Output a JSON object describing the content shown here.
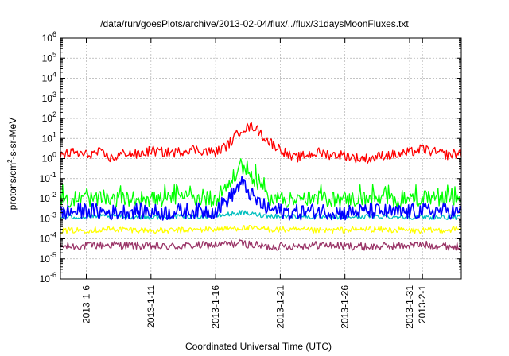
{
  "chart_data": {
    "type": "line",
    "title": "/data/run/goesPlots/archive/2013-02-04/flux/../flux/31daysMoonFluxes.txt",
    "xlabel": "Coordinated Universal Time (UTC)",
    "ylabel": "protons/cm2-s-sr-MeV",
    "ylabel_base": "protons/cm",
    "ylabel_sup": "2",
    "ylabel_rest": "-s-sr-MeV",
    "yscale": "log",
    "ylim": [
      1e-06,
      1000000
    ],
    "ytick_exponents": [
      "-6",
      "-5",
      "-4",
      "-3",
      "-2",
      "-1",
      "0",
      "1",
      "2",
      "3",
      "4",
      "5",
      "6"
    ],
    "ytick_base": "10",
    "xlim": [
      "2013-01-04",
      "2013-02-04"
    ],
    "xticks": [
      {
        "date": "2013-01-06",
        "label": "2013-1-6"
      },
      {
        "date": "2013-01-11",
        "label": "2013-1-11"
      },
      {
        "date": "2013-01-16",
        "label": "2013-1-16"
      },
      {
        "date": "2013-01-21",
        "label": "2013-1-21"
      },
      {
        "date": "2013-01-26",
        "label": "2013-1-26"
      },
      {
        "date": "2013-01-31",
        "label": "2013-1-31"
      },
      {
        "date": "2013-02-01",
        "label": "2013-2-1"
      }
    ],
    "grid": true,
    "legend": "none",
    "series_colors": [
      "#ff0000",
      "#00ff00",
      "#0000ff",
      "#00bfbf",
      "#ffff00",
      "#993366"
    ],
    "series": [
      {
        "color": "#ff0000",
        "dates": [
          "2013-01-04",
          "2013-01-05",
          "2013-01-06",
          "2013-01-07",
          "2013-01-08",
          "2013-01-09",
          "2013-01-10",
          "2013-01-11",
          "2013-01-12",
          "2013-01-13",
          "2013-01-14",
          "2013-01-15",
          "2013-01-16",
          "2013-01-17",
          "2013-01-18",
          "2013-01-19",
          "2013-01-20",
          "2013-01-21",
          "2013-01-22",
          "2013-01-23",
          "2013-01-24",
          "2013-01-25",
          "2013-01-26",
          "2013-01-27",
          "2013-01-28",
          "2013-01-29",
          "2013-01-30",
          "2013-01-31",
          "2013-02-01",
          "2013-02-02",
          "2013-02-03",
          "2013-02-04"
        ],
        "values": [
          1.5,
          2,
          1.5,
          2,
          1,
          2,
          1.5,
          2.5,
          2,
          2,
          3,
          2.5,
          2,
          5,
          30,
          40,
          8,
          3,
          1,
          1.5,
          2,
          1.5,
          1.5,
          1,
          1,
          1.5,
          1.5,
          2,
          3,
          2,
          1.5,
          2
        ]
      },
      {
        "color": "#00ff00",
        "dates": [
          "2013-01-04",
          "2013-01-06",
          "2013-01-08",
          "2013-01-10",
          "2013-01-12",
          "2013-01-14",
          "2013-01-16",
          "2013-01-17",
          "2013-01-18",
          "2013-01-19",
          "2013-01-20",
          "2013-01-22",
          "2013-01-24",
          "2013-01-26",
          "2013-01-28",
          "2013-01-30",
          "2013-02-01",
          "2013-02-03",
          "2013-02-04"
        ],
        "values": [
          0.008,
          0.01,
          0.008,
          0.01,
          0.009,
          0.01,
          0.01,
          0.05,
          0.4,
          0.1,
          0.01,
          0.008,
          0.01,
          0.009,
          0.01,
          0.008,
          0.01,
          0.01,
          0.01
        ]
      },
      {
        "color": "#0000ff",
        "dates": [
          "2013-01-04",
          "2013-01-06",
          "2013-01-08",
          "2013-01-10",
          "2013-01-12",
          "2013-01-14",
          "2013-01-16",
          "2013-01-17",
          "2013-01-18",
          "2013-01-19",
          "2013-01-20",
          "2013-01-22",
          "2013-01-24",
          "2013-01-26",
          "2013-01-28",
          "2013-01-30",
          "2013-02-01",
          "2013-02-03",
          "2013-02-04"
        ],
        "values": [
          0.002,
          0.0025,
          0.002,
          0.0025,
          0.002,
          0.0025,
          0.0025,
          0.01,
          0.06,
          0.01,
          0.003,
          0.002,
          0.0025,
          0.002,
          0.0025,
          0.002,
          0.0025,
          0.0025,
          0.002
        ]
      },
      {
        "color": "#00bfbf",
        "dates": [
          "2013-01-04",
          "2013-01-08",
          "2013-01-12",
          "2013-01-16",
          "2013-01-18",
          "2013-01-20",
          "2013-01-24",
          "2013-01-28",
          "2013-02-01",
          "2013-02-04"
        ],
        "values": [
          0.0012,
          0.0013,
          0.0012,
          0.0014,
          0.002,
          0.0014,
          0.0012,
          0.0013,
          0.0012,
          0.0012
        ]
      },
      {
        "color": "#ffff00",
        "dates": [
          "2013-01-04",
          "2013-01-08",
          "2013-01-12",
          "2013-01-16",
          "2013-01-18",
          "2013-01-20",
          "2013-01-24",
          "2013-01-28",
          "2013-02-01",
          "2013-02-04"
        ],
        "values": [
          0.00025,
          0.0003,
          0.00025,
          0.0003,
          0.00035,
          0.0003,
          0.00025,
          0.0003,
          0.00025,
          0.0003
        ]
      },
      {
        "color": "#993366",
        "dates": [
          "2013-01-04",
          "2013-01-08",
          "2013-01-12",
          "2013-01-16",
          "2013-01-18",
          "2013-01-20",
          "2013-01-24",
          "2013-01-28",
          "2013-02-01",
          "2013-02-04"
        ],
        "values": [
          4e-05,
          5e-05,
          4e-05,
          5e-05,
          6e-05,
          4e-05,
          5e-05,
          4e-05,
          5e-05,
          4e-05
        ]
      }
    ]
  }
}
